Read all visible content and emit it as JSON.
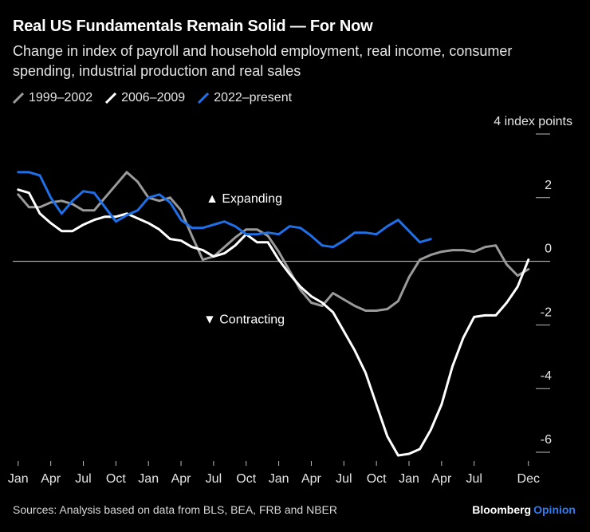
{
  "header": {
    "title": "Real US Fundamentals Remain Solid — For Now",
    "subtitle": "Change in index of payroll and household employment, real income, consumer spending, industrial production and real sales"
  },
  "footer": {
    "source": "Sources: Analysis based on data from BLS, BEA, FRB and NBER"
  },
  "brand": {
    "name": "Bloomberg",
    "suffix": "Opinion"
  },
  "colors": {
    "background": "#000000",
    "s1999": "#9a9a9a",
    "s2006": "#ffffff",
    "s2022": "#1f6fe8",
    "brand_accent": "#2f7cf6"
  },
  "chart_data": {
    "type": "line",
    "unit_label": "4 index points",
    "ylim": [
      -6.2,
      4
    ],
    "yticks": [
      2,
      0,
      -2,
      -4,
      -6
    ],
    "ytick_labels": [
      "2",
      "0",
      "-2",
      "-4",
      "-6"
    ],
    "x_label_positions": [
      0,
      3,
      6,
      9,
      12,
      15,
      18,
      21,
      24,
      27,
      30,
      33,
      36,
      39,
      42,
      47
    ],
    "x_labels": [
      "Jan",
      "Apr",
      "Jul",
      "Oct",
      "Jan",
      "Apr",
      "Jul",
      "Oct",
      "Jan",
      "Apr",
      "Jul",
      "Oct",
      "Jan",
      "Apr",
      "Jul",
      "Dec"
    ],
    "xlim": [
      -0.5,
      49
    ],
    "annotations": [
      {
        "text": "▲ Expanding",
        "x": 20.8,
        "y": 2.0
      },
      {
        "text": "▼ Contracting",
        "x": 20.8,
        "y": -1.8
      }
    ],
    "series": [
      {
        "name": "1999–2002",
        "color": "#9a9a9a",
        "x": [
          0,
          1,
          2,
          3,
          4,
          5,
          6,
          7,
          8,
          9,
          10,
          11,
          12,
          13,
          14,
          15,
          16,
          17,
          18,
          19,
          20,
          21,
          22,
          23,
          24,
          25,
          26,
          27,
          28,
          29,
          30,
          31,
          32,
          33,
          34,
          35,
          36,
          37,
          38,
          39,
          40,
          41,
          42,
          43,
          44,
          45,
          46,
          47
        ],
        "y": [
          2.1,
          1.7,
          1.7,
          1.85,
          1.9,
          1.8,
          1.6,
          1.6,
          2.0,
          2.4,
          2.8,
          2.5,
          2.0,
          1.9,
          2.0,
          1.6,
          0.8,
          0.05,
          0.15,
          0.45,
          0.75,
          1.0,
          1.0,
          0.8,
          0.3,
          -0.3,
          -0.9,
          -1.3,
          -1.4,
          -1.0,
          -1.2,
          -1.4,
          -1.55,
          -1.55,
          -1.5,
          -1.25,
          -0.5,
          0.05,
          0.2,
          0.3,
          0.35,
          0.35,
          0.3,
          0.45,
          0.5,
          -0.1,
          -0.45,
          -0.25
        ]
      },
      {
        "name": "2006–2009",
        "color": "#ffffff",
        "x": [
          0,
          1,
          2,
          3,
          4,
          5,
          6,
          7,
          8,
          9,
          10,
          11,
          12,
          13,
          14,
          15,
          16,
          17,
          18,
          19,
          20,
          21,
          22,
          23,
          24,
          25,
          26,
          27,
          28,
          29,
          30,
          31,
          32,
          33,
          34,
          35,
          36,
          37,
          38,
          39,
          40,
          41,
          42,
          43,
          44,
          45,
          46,
          47
        ],
        "y": [
          2.25,
          2.15,
          1.5,
          1.2,
          0.95,
          0.95,
          1.15,
          1.3,
          1.4,
          1.4,
          1.5,
          1.35,
          1.2,
          1.0,
          0.7,
          0.65,
          0.45,
          0.35,
          0.15,
          0.25,
          0.5,
          0.85,
          0.6,
          0.6,
          0.05,
          -0.4,
          -0.8,
          -1.1,
          -1.3,
          -1.6,
          -2.2,
          -2.8,
          -3.5,
          -4.5,
          -5.5,
          -6.1,
          -6.05,
          -5.9,
          -5.3,
          -4.5,
          -3.3,
          -2.4,
          -1.75,
          -1.7,
          -1.7,
          -1.3,
          -0.8,
          0.05
        ]
      },
      {
        "name": "2022–present",
        "color": "#1f6fe8",
        "x": [
          0,
          1,
          2,
          3,
          4,
          5,
          6,
          7,
          8,
          9,
          10,
          11,
          12,
          13,
          14,
          15,
          16,
          17,
          18,
          19,
          20,
          21,
          22,
          23,
          24,
          25,
          26,
          27,
          28,
          29,
          30,
          31,
          32,
          33,
          34,
          35,
          36,
          37,
          38
        ],
        "y": [
          2.8,
          2.8,
          2.7,
          2.0,
          1.5,
          1.9,
          2.2,
          2.15,
          1.7,
          1.25,
          1.45,
          1.6,
          2.0,
          2.1,
          1.85,
          1.3,
          1.05,
          1.05,
          1.15,
          1.25,
          1.1,
          0.85,
          0.85,
          0.9,
          0.85,
          1.1,
          1.05,
          0.8,
          0.5,
          0.45,
          0.65,
          0.9,
          0.9,
          0.85,
          1.1,
          1.3,
          0.95,
          0.6,
          0.7
        ]
      }
    ]
  }
}
